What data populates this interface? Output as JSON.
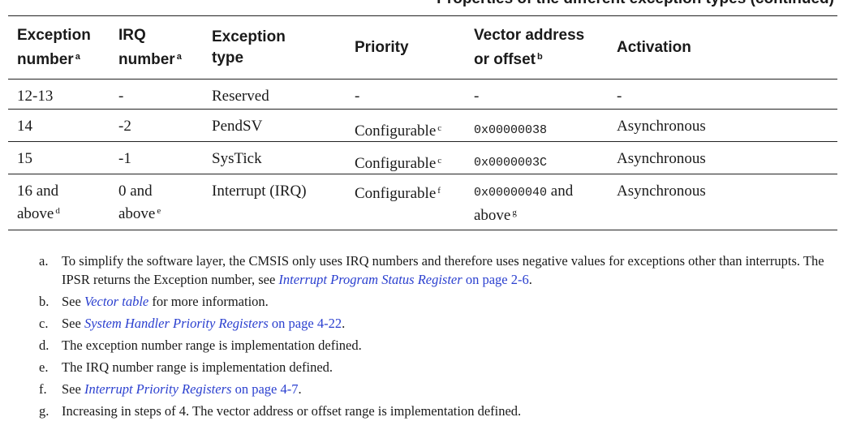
{
  "caption": "Properties of the different exception types (continued)",
  "headers": [
    {
      "line1": "Exception",
      "line2": "number",
      "sup": "a"
    },
    {
      "line1": "IRQ",
      "line2": "number",
      "sup": "a"
    },
    {
      "line1": "Exception",
      "line2": "type",
      "sup": ""
    },
    {
      "line1": "Priority",
      "line2": "",
      "sup": ""
    },
    {
      "line1": "Vector address",
      "line2": "or offset",
      "sup": "b"
    },
    {
      "line1": "Activation",
      "line2": "",
      "sup": ""
    }
  ],
  "rows": [
    {
      "exc": "12-13",
      "exc2": "",
      "exc_sup": "",
      "irq": "-",
      "irq2": "",
      "irq_sup": "",
      "type": "Reserved",
      "priority": "-",
      "priority_sup": "",
      "vector": "-",
      "vector_suffix": "",
      "vector2": "",
      "vector_sup": "",
      "activation": "-"
    },
    {
      "exc": "14",
      "exc2": "",
      "exc_sup": "",
      "irq": "-2",
      "irq2": "",
      "irq_sup": "",
      "type": "PendSV",
      "priority": "Configurable",
      "priority_sup": "c",
      "vector": "0x00000038",
      "vector_suffix": "",
      "vector2": "",
      "vector_sup": "",
      "activation": "Asynchronous"
    },
    {
      "exc": "15",
      "exc2": "",
      "exc_sup": "",
      "irq": "-1",
      "irq2": "",
      "irq_sup": "",
      "type": "SysTick",
      "priority": "Configurable",
      "priority_sup": "c",
      "vector": "0x0000003C",
      "vector_suffix": "",
      "vector2": "",
      "vector_sup": "",
      "activation": "Asynchronous"
    },
    {
      "exc": "16 and",
      "exc2": "above",
      "exc_sup": "d",
      "irq": "0 and",
      "irq2": "above",
      "irq_sup": "e",
      "type": "Interrupt (IRQ)",
      "priority": "Configurable",
      "priority_sup": "f",
      "vector": "0x00000040",
      "vector_suffix": " and",
      "vector2": "above",
      "vector_sup": "g",
      "activation": "Asynchronous"
    }
  ],
  "notes": [
    {
      "label": "a.",
      "text1": "To simplify the software layer, the CMSIS only uses IRQ numbers and therefore uses negative values for exceptions other than interrupts. The IPSR returns the Exception number, see ",
      "link_italic": "Interrupt Program Status Register",
      "link_rest": " on page 2-6",
      "text2": "."
    },
    {
      "label": "b.",
      "text1": "See ",
      "link_italic": "Vector table",
      "link_rest": "",
      "text2": " for more information."
    },
    {
      "label": "c.",
      "text1": "See ",
      "link_italic": "System Handler Priority Registers",
      "link_rest": " on page 4-22",
      "text2": "."
    },
    {
      "label": "d.",
      "text1": "The exception number range is implementation defined.",
      "link_italic": "",
      "link_rest": "",
      "text2": ""
    },
    {
      "label": "e.",
      "text1": "The IRQ number range is implementation defined.",
      "link_italic": "",
      "link_rest": "",
      "text2": ""
    },
    {
      "label": "f.",
      "text1": "See ",
      "link_italic": "Interrupt Priority Registers",
      "link_rest": " on page 4-7",
      "text2": "."
    },
    {
      "label": "g.",
      "text1": "Increasing in steps of 4. The vector address or offset range is implementation defined.",
      "link_italic": "",
      "link_rest": "",
      "text2": ""
    }
  ]
}
